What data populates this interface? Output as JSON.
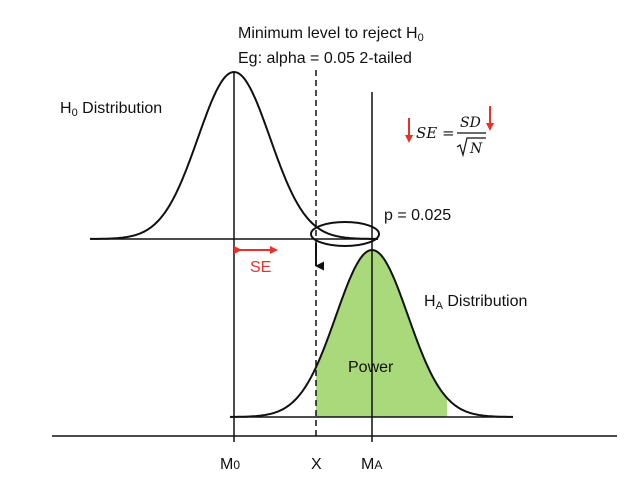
{
  "annotation": {
    "line1": "Minimum level to reject H",
    "line1_sub": "0",
    "line2": "Eg: alpha = 0.05 2-tailed"
  },
  "h0_label": {
    "main": "H",
    "sub": "0",
    "rest": " Distribution"
  },
  "ha_label": {
    "main": "H",
    "sub": "A",
    "rest": " Distribution"
  },
  "p_label": "p = 0.025",
  "se_label": "SE",
  "power_label": "Power",
  "formula": {
    "lhs": "SE",
    "eq": "=",
    "numerator": "SD",
    "denominator": "N"
  },
  "axis_labels": {
    "m0_main": "M",
    "m0_sub": "0",
    "x": "X",
    "ma_main": "M",
    "ma_sub": "A"
  },
  "colors": {
    "power_fill": "#a9d97a",
    "red": "#e5332a",
    "curve": "#111111"
  }
}
